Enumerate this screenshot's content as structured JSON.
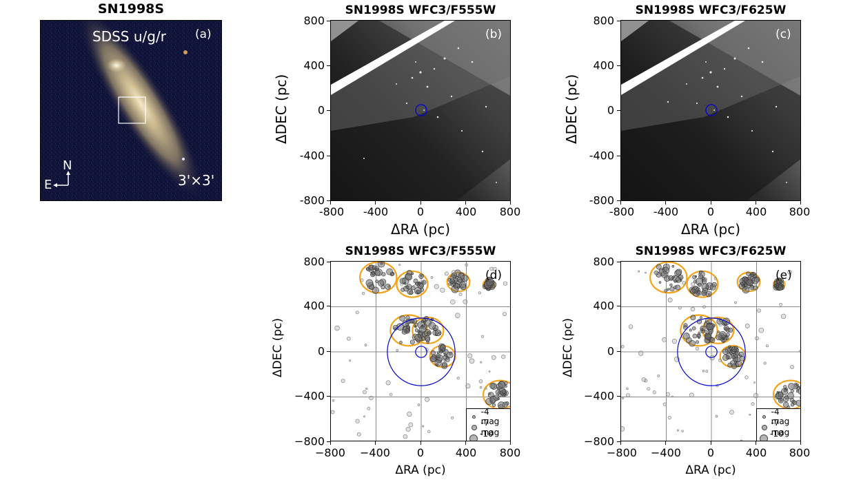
{
  "panel_a": {
    "title": "SN1998S",
    "caption": "SDSS u/g/r",
    "letter": "(a)",
    "scale": "3'×3'",
    "compass_n": "N",
    "compass_e": "E"
  },
  "panel_b": {
    "title": "SN1998S WFC3/F555W",
    "letter": "(b)"
  },
  "panel_c": {
    "title": "SN1998S WFC3/F625W",
    "letter": "(c)"
  },
  "panel_d": {
    "title": "SN1998S WFC3/F555W",
    "letter": "(d)"
  },
  "panel_e": {
    "title": "SN1998S WFC3/F625W",
    "letter": "(e)"
  },
  "axes": {
    "xlabel": "ΔRA (pc)",
    "ylabel": "ΔDEC (pc)",
    "top_x_ticks": [
      "-800",
      "-400",
      "0",
      "400",
      "800"
    ],
    "top_y_ticks": [
      "800",
      "400",
      "0",
      "-400",
      "-800"
    ],
    "bottom_x_ticks": [
      "−800",
      "−400",
      "0",
      "400",
      "800"
    ],
    "bottom_y_ticks": [
      "800",
      "400",
      "0",
      "−400",
      "−800"
    ]
  },
  "legend": {
    "items": [
      "-4 mag",
      "-7 mag",
      "-10 mag"
    ]
  },
  "chart_data": [
    {
      "type": "scatter",
      "title": "SN1998S WFC3/F555W",
      "xlabel": "ΔRA (pc)",
      "ylabel": "ΔDEC (pc)",
      "xlim": [
        -800,
        800
      ],
      "ylim": [
        -800,
        800
      ],
      "grid": true,
      "legend": [
        "-4 mag",
        "-7 mag",
        "-10 mag"
      ],
      "circles": [
        {
          "center": [
            0,
            0
          ],
          "radius_pc": 50,
          "color": "#0000cc"
        },
        {
          "center": [
            0,
            0
          ],
          "radius_pc": 300,
          "color": "#0000cc"
        }
      ],
      "contour_color": "#f5a31a"
    },
    {
      "type": "scatter",
      "title": "SN1998S WFC3/F625W",
      "xlabel": "ΔRA (pc)",
      "ylabel": "ΔDEC (pc)",
      "xlim": [
        -800,
        800
      ],
      "ylim": [
        -800,
        800
      ],
      "grid": true,
      "legend": [
        "-4 mag",
        "-7 mag",
        "-10 mag"
      ],
      "circles": [
        {
          "center": [
            0,
            0
          ],
          "radius_pc": 50,
          "color": "#0000cc"
        },
        {
          "center": [
            0,
            0
          ],
          "radius_pc": 300,
          "color": "#0000cc"
        }
      ],
      "contour_color": "#f5a31a"
    }
  ]
}
